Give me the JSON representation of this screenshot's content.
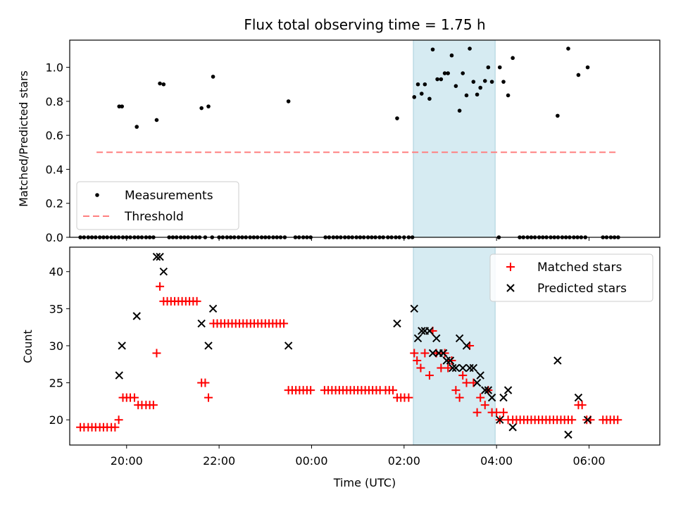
{
  "chart_data": [
    {
      "type": "scatter",
      "title": "Flux total observing time = 1.75 h",
      "xlabel": "",
      "ylabel": "Matched/Predicted stars",
      "ylim": [
        0,
        1.16
      ],
      "xlim_hours": [
        18.77,
        31.53
      ],
      "yticks": [
        "0.0",
        "0.2",
        "0.4",
        "0.6",
        "0.8",
        "1.0"
      ],
      "shaded_span_hours": [
        26.2,
        27.97
      ],
      "legend": [
        "Measurements",
        "Threshold"
      ],
      "threshold": {
        "value": 0.5,
        "x_start": 19.35,
        "x_end": 30.6,
        "color": "#ff8080"
      },
      "measurements": [
        [
          19.84,
          0.77
        ],
        [
          19.9,
          0.77
        ],
        [
          20.22,
          0.65
        ],
        [
          20.65,
          0.69
        ],
        [
          20.72,
          0.905
        ],
        [
          20.8,
          0.9
        ],
        [
          21.62,
          0.76
        ],
        [
          21.77,
          0.77
        ],
        [
          21.87,
          0.945
        ],
        [
          23.5,
          0.8
        ],
        [
          25.85,
          0.7
        ],
        [
          26.22,
          0.825
        ],
        [
          26.3,
          0.9
        ],
        [
          26.38,
          0.845
        ],
        [
          26.45,
          0.9
        ],
        [
          26.55,
          0.815
        ],
        [
          26.62,
          1.105
        ],
        [
          26.72,
          0.93
        ],
        [
          26.8,
          0.93
        ],
        [
          26.88,
          0.965
        ],
        [
          26.95,
          0.965
        ],
        [
          27.03,
          1.07
        ],
        [
          27.12,
          0.89
        ],
        [
          27.2,
          0.745
        ],
        [
          27.27,
          0.965
        ],
        [
          27.35,
          0.835
        ],
        [
          27.42,
          1.11
        ],
        [
          27.5,
          0.915
        ],
        [
          27.58,
          0.84
        ],
        [
          27.65,
          0.88
        ],
        [
          27.75,
          0.92
        ],
        [
          27.82,
          1.0
        ],
        [
          27.9,
          0.915
        ],
        [
          28.07,
          1.0
        ],
        [
          28.15,
          0.915
        ],
        [
          28.25,
          0.835
        ],
        [
          28.35,
          1.055
        ],
        [
          29.32,
          0.715
        ],
        [
          29.55,
          1.11
        ],
        [
          29.77,
          0.955
        ],
        [
          29.97,
          1.0
        ]
      ],
      "zero_points_hours": [
        19.0,
        19.08,
        19.17,
        19.25,
        19.33,
        19.42,
        19.5,
        19.58,
        19.67,
        19.75,
        19.83,
        19.92,
        20.0,
        20.08,
        20.17,
        20.25,
        20.33,
        20.42,
        20.5,
        20.58,
        20.92,
        21.0,
        21.08,
        21.17,
        21.25,
        21.33,
        21.42,
        21.5,
        21.58,
        21.7,
        21.85,
        22.0,
        22.08,
        22.17,
        22.25,
        22.33,
        22.42,
        22.5,
        22.58,
        22.67,
        22.75,
        22.83,
        22.92,
        23.0,
        23.08,
        23.17,
        23.25,
        23.33,
        23.42,
        23.65,
        23.73,
        23.82,
        23.9,
        23.98,
        24.3,
        24.38,
        24.47,
        24.55,
        24.63,
        24.72,
        24.8,
        24.88,
        24.97,
        25.05,
        25.13,
        25.22,
        25.3,
        25.38,
        25.47,
        25.55,
        25.65,
        25.73,
        25.82,
        25.9,
        26.0,
        26.1,
        26.18,
        28.05,
        28.5,
        28.58,
        28.67,
        28.75,
        28.83,
        28.92,
        29.0,
        29.08,
        29.17,
        29.25,
        29.33,
        29.42,
        29.5,
        29.58,
        29.67,
        29.75,
        29.83,
        29.92,
        30.3,
        30.38,
        30.47,
        30.55,
        30.63
      ]
    },
    {
      "type": "scatter",
      "xlabel": "Time (UTC)",
      "ylabel": "Count",
      "ylim": [
        16.6,
        43.3
      ],
      "xlim_hours": [
        18.77,
        31.53
      ],
      "yticks": [
        "20",
        "25",
        "30",
        "35",
        "40"
      ],
      "xticks": [
        {
          "hour": 20,
          "label": "20:00"
        },
        {
          "hour": 22,
          "label": "22:00"
        },
        {
          "hour": 24,
          "label": "00:00"
        },
        {
          "hour": 26,
          "label": "02:00"
        },
        {
          "hour": 28,
          "label": "04:00"
        },
        {
          "hour": 30,
          "label": "06:00"
        }
      ],
      "shaded_span_hours": [
        26.2,
        27.97
      ],
      "legend": [
        "Matched stars",
        "Predicted stars"
      ],
      "series": [
        {
          "name": "Matched stars",
          "marker": "+",
          "color": "#ff0000",
          "points": [
            [
              19.0,
              19
            ],
            [
              19.08,
              19
            ],
            [
              19.17,
              19
            ],
            [
              19.25,
              19
            ],
            [
              19.33,
              19
            ],
            [
              19.42,
              19
            ],
            [
              19.5,
              19
            ],
            [
              19.58,
              19
            ],
            [
              19.67,
              19
            ],
            [
              19.75,
              19
            ],
            [
              19.83,
              20
            ],
            [
              19.92,
              23
            ],
            [
              20.0,
              23
            ],
            [
              20.08,
              23
            ],
            [
              20.17,
              23
            ],
            [
              20.25,
              22
            ],
            [
              20.33,
              22
            ],
            [
              20.42,
              22
            ],
            [
              20.5,
              22
            ],
            [
              20.58,
              22
            ],
            [
              20.65,
              29
            ],
            [
              20.72,
              38
            ],
            [
              20.8,
              36
            ],
            [
              20.88,
              36
            ],
            [
              20.96,
              36
            ],
            [
              21.04,
              36
            ],
            [
              21.12,
              36
            ],
            [
              21.2,
              36
            ],
            [
              21.28,
              36
            ],
            [
              21.36,
              36
            ],
            [
              21.44,
              36
            ],
            [
              21.52,
              36
            ],
            [
              21.62,
              25
            ],
            [
              21.7,
              25
            ],
            [
              21.77,
              23
            ],
            [
              21.88,
              33
            ],
            [
              21.96,
              33
            ],
            [
              22.04,
              33
            ],
            [
              22.12,
              33
            ],
            [
              22.2,
              33
            ],
            [
              22.28,
              33
            ],
            [
              22.36,
              33
            ],
            [
              22.44,
              33
            ],
            [
              22.52,
              33
            ],
            [
              22.6,
              33
            ],
            [
              22.68,
              33
            ],
            [
              22.76,
              33
            ],
            [
              22.84,
              33
            ],
            [
              22.92,
              33
            ],
            [
              23.0,
              33
            ],
            [
              23.08,
              33
            ],
            [
              23.16,
              33
            ],
            [
              23.24,
              33
            ],
            [
              23.32,
              33
            ],
            [
              23.4,
              33
            ],
            [
              23.5,
              24
            ],
            [
              23.58,
              24
            ],
            [
              23.66,
              24
            ],
            [
              23.74,
              24
            ],
            [
              23.82,
              24
            ],
            [
              23.9,
              24
            ],
            [
              23.98,
              24
            ],
            [
              24.28,
              24
            ],
            [
              24.36,
              24
            ],
            [
              24.44,
              24
            ],
            [
              24.52,
              24
            ],
            [
              24.6,
              24
            ],
            [
              24.68,
              24
            ],
            [
              24.76,
              24
            ],
            [
              24.84,
              24
            ],
            [
              24.92,
              24
            ],
            [
              25.0,
              24
            ],
            [
              25.08,
              24
            ],
            [
              25.16,
              24
            ],
            [
              25.24,
              24
            ],
            [
              25.32,
              24
            ],
            [
              25.4,
              24
            ],
            [
              25.48,
              24
            ],
            [
              25.6,
              24
            ],
            [
              25.68,
              24
            ],
            [
              25.76,
              24
            ],
            [
              25.85,
              23
            ],
            [
              25.93,
              23
            ],
            [
              26.01,
              23
            ],
            [
              26.1,
              23
            ],
            [
              26.22,
              29
            ],
            [
              26.28,
              28
            ],
            [
              26.36,
              27
            ],
            [
              26.45,
              29
            ],
            [
              26.55,
              26
            ],
            [
              26.62,
              32
            ],
            [
              26.7,
              29
            ],
            [
              26.8,
              27
            ],
            [
              26.88,
              29
            ],
            [
              26.95,
              27
            ],
            [
              27.03,
              28
            ],
            [
              27.12,
              24
            ],
            [
              27.2,
              23
            ],
            [
              27.27,
              26
            ],
            [
              27.35,
              25
            ],
            [
              27.42,
              30
            ],
            [
              27.5,
              25
            ],
            [
              27.58,
              21
            ],
            [
              27.65,
              23
            ],
            [
              27.75,
              22
            ],
            [
              27.82,
              24
            ],
            [
              27.9,
              21
            ],
            [
              28.0,
              21
            ],
            [
              28.07,
              20
            ],
            [
              28.15,
              21
            ],
            [
              28.25,
              20
            ],
            [
              28.35,
              20
            ],
            [
              28.43,
              20
            ],
            [
              28.51,
              20
            ],
            [
              28.59,
              20
            ],
            [
              28.67,
              20
            ],
            [
              28.75,
              20
            ],
            [
              28.83,
              20
            ],
            [
              28.91,
              20
            ],
            [
              28.99,
              20
            ],
            [
              29.07,
              20
            ],
            [
              29.15,
              20
            ],
            [
              29.23,
              20
            ],
            [
              29.31,
              20
            ],
            [
              29.39,
              20
            ],
            [
              29.47,
              20
            ],
            [
              29.55,
              20
            ],
            [
              29.63,
              20
            ],
            [
              29.77,
              22
            ],
            [
              29.85,
              22
            ],
            [
              29.95,
              20
            ],
            [
              30.03,
              20
            ],
            [
              30.3,
              20
            ],
            [
              30.38,
              20
            ],
            [
              30.46,
              20
            ],
            [
              30.54,
              20
            ],
            [
              30.62,
              20
            ]
          ]
        },
        {
          "name": "Predicted stars",
          "marker": "x",
          "color": "#000000",
          "points": [
            [
              19.84,
              26
            ],
            [
              19.9,
              30
            ],
            [
              20.22,
              34
            ],
            [
              20.65,
              42
            ],
            [
              20.72,
              42
            ],
            [
              20.8,
              40
            ],
            [
              21.62,
              33
            ],
            [
              21.77,
              30
            ],
            [
              21.87,
              35
            ],
            [
              23.5,
              30
            ],
            [
              25.85,
              33
            ],
            [
              26.22,
              35
            ],
            [
              26.3,
              31
            ],
            [
              26.38,
              32
            ],
            [
              26.45,
              32
            ],
            [
              26.55,
              32
            ],
            [
              26.62,
              29
            ],
            [
              26.7,
              31
            ],
            [
              26.75,
              29
            ],
            [
              26.85,
              29
            ],
            [
              26.92,
              28
            ],
            [
              27.0,
              28
            ],
            [
              27.05,
              27
            ],
            [
              27.12,
              27
            ],
            [
              27.2,
              31
            ],
            [
              27.27,
              27
            ],
            [
              27.35,
              30
            ],
            [
              27.42,
              27
            ],
            [
              27.5,
              27
            ],
            [
              27.58,
              25
            ],
            [
              27.65,
              26
            ],
            [
              27.75,
              24
            ],
            [
              27.82,
              24
            ],
            [
              27.9,
              23
            ],
            [
              28.07,
              20
            ],
            [
              28.15,
              23
            ],
            [
              28.25,
              24
            ],
            [
              28.35,
              19
            ],
            [
              29.32,
              28
            ],
            [
              29.55,
              18
            ],
            [
              29.77,
              23
            ],
            [
              29.97,
              20
            ]
          ]
        }
      ]
    }
  ]
}
